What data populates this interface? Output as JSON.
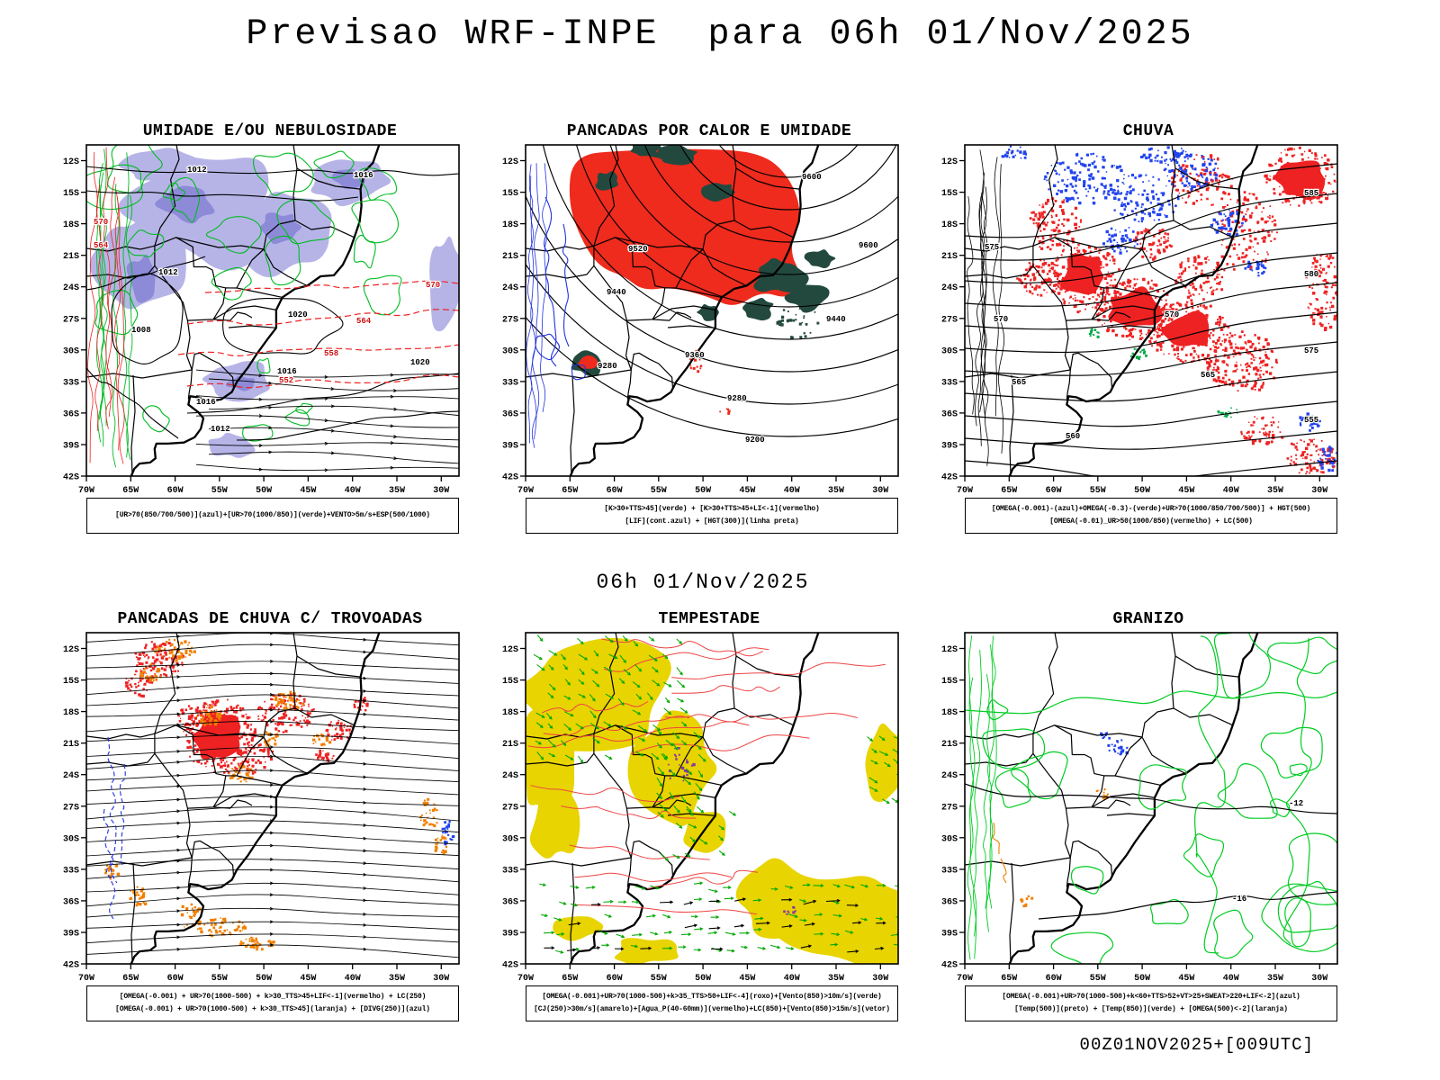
{
  "main_title": "Previsao WRF-INPE  para 06h 01/Nov/2025",
  "mid_title": "06h 01/Nov/2025",
  "footer_note": "00Z01NOV2025+[009UTC]",
  "axis": {
    "lat_labels": [
      "12S",
      "15S",
      "18S",
      "21S",
      "24S",
      "27S",
      "30S",
      "33S",
      "36S",
      "39S",
      "42S"
    ],
    "lon_labels": [
      "70W",
      "65W",
      "60W",
      "55W",
      "50W",
      "45W",
      "40W",
      "35W",
      "30W"
    ]
  },
  "colors": {
    "humidity_shade": "#b6b4e7",
    "humidity_shade_dark": "#8d8bd8",
    "convective_red": "#ee2b1d",
    "convective_teal": "#23493f",
    "rain_red": "#ee2222",
    "rain_blue": "#2244ee",
    "storm_yellow": "#e8d400",
    "wind_green": "#00a800",
    "contour_green": "#00bb22",
    "hail_green": "#00cc22",
    "orange": "#f07f00",
    "purple": "#8833aa",
    "dashed_red": "#ee2222",
    "lif_blue": "#2233dd"
  },
  "panels": [
    {
      "key": "umidade",
      "title": "UMIDADE E/OU NEBULOSIDADE",
      "caption": [
        "[UR>70(850/700/500)](azul)+[UR>70(1000/850)](verde)+VENTO>5m/s+ESP(500/1000)"
      ],
      "labels_black": [
        "1012",
        "1016",
        "1012",
        "1008",
        "1020",
        "1020",
        "1016",
        "1012",
        "1016"
      ],
      "labels_red": [
        "552",
        "558",
        "564",
        "570",
        "570",
        "564"
      ]
    },
    {
      "key": "pancadas_calor_umidade",
      "title": "PANCADAS POR CALOR E UMIDADE",
      "caption": [
        "[K>30+TTS>45](verde) + [K>30+TTS>45+LI<-1](vermelho)",
        "[LIF](cont.azul) + [HGT(300)](linha preta)"
      ],
      "labels_black": [
        "9600",
        "9600",
        "9520",
        "9440",
        "9440",
        "9360",
        "9280",
        "9280",
        "9200"
      ],
      "labels_red": []
    },
    {
      "key": "chuva",
      "title": "CHUVA",
      "caption": [
        "[OMEGA(-0.001)-(azul)+OMEGA(-0.3)-(verde)+UR>70(1000/850/700/500)] + HGT(500)",
        "[OMEGA(-0.01)_UR>50(1000/850)(vermelho) + LC(500)"
      ],
      "labels_black": [
        "575",
        "585",
        "570",
        "580",
        "565",
        "575",
        "560",
        "565",
        "570",
        "555"
      ],
      "labels_red": []
    },
    {
      "key": "pancadas_trovoadas",
      "title": "PANCADAS DE CHUVA C/ TROVOADAS",
      "caption": [
        "[OMEGA(-0.001) + UR>70(1000-500) + k>30_TTS>45+LIF<-1](vermelho) + LC(250)",
        "[OMEGA(-0.001) + UR>70(1000-500) + k>30_TTS>45](laranja) + [DIVG(250)](azul)"
      ],
      "labels_black": [],
      "labels_red": []
    },
    {
      "key": "tempestade",
      "title": "TEMPESTADE",
      "caption": [
        "[OMEGA(-0.001)+UR>70(1000-500)+k>35_TTS>50+LIF<-4](roxo)+[Vento(850)>10m/s](verde)",
        "[CJ(250)>30m/s](amarelo)+[Agua_P(40-60mm)](vermelho)+LC(850)+[Vento(850)>15m/s](vetor)"
      ],
      "labels_black": [],
      "labels_red": []
    },
    {
      "key": "granizo",
      "title": "GRANIZO",
      "caption": [
        "[OMEGA(-0.001)+UR>70(1000-500)+k<60+TTS>52+VT>25+SWEAT>220+LIF<-2](azul)",
        "[Temp(500)](preto) + [Temp(850)](verde) + [OMEGA(500)<-2](laranja)"
      ],
      "labels_black": [
        "-12",
        "-16"
      ],
      "labels_red": []
    }
  ]
}
